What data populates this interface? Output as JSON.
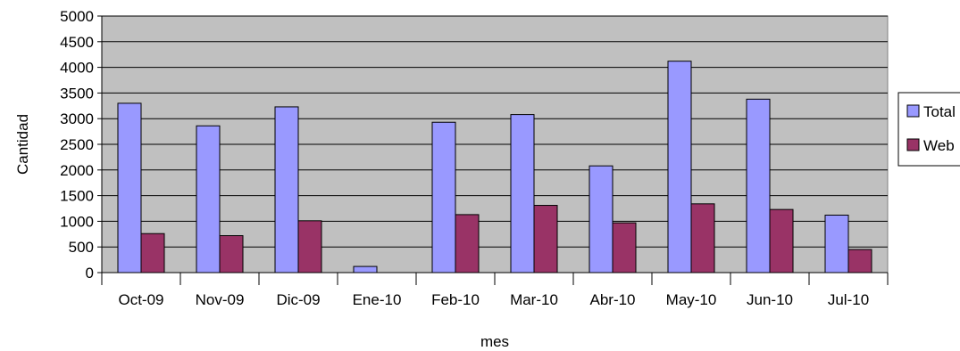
{
  "chart_data": {
    "type": "bar",
    "title": "",
    "xlabel": "mes",
    "ylabel": "Cantidad",
    "ylim": [
      0,
      5000
    ],
    "yticks": [
      0,
      500,
      1000,
      1500,
      2000,
      2500,
      3000,
      3500,
      4000,
      4500,
      5000
    ],
    "categories": [
      "Oct-09",
      "Nov-09",
      "Dic-09",
      "Ene-10",
      "Feb-10",
      "Mar-10",
      "Abr-10",
      "May-10",
      "Jun-10",
      "Jul-10"
    ],
    "series": [
      {
        "name": "Total",
        "color": "#9999ff",
        "values": [
          3300,
          2860,
          3230,
          120,
          2930,
          3080,
          2080,
          4120,
          3380,
          1120
        ]
      },
      {
        "name": "Web",
        "color": "#993366",
        "values": [
          760,
          720,
          1010,
          0,
          1130,
          1310,
          970,
          1340,
          1230,
          450
        ]
      }
    ],
    "plot_background": "#c0c0c0",
    "grid": true,
    "legend": "right"
  }
}
